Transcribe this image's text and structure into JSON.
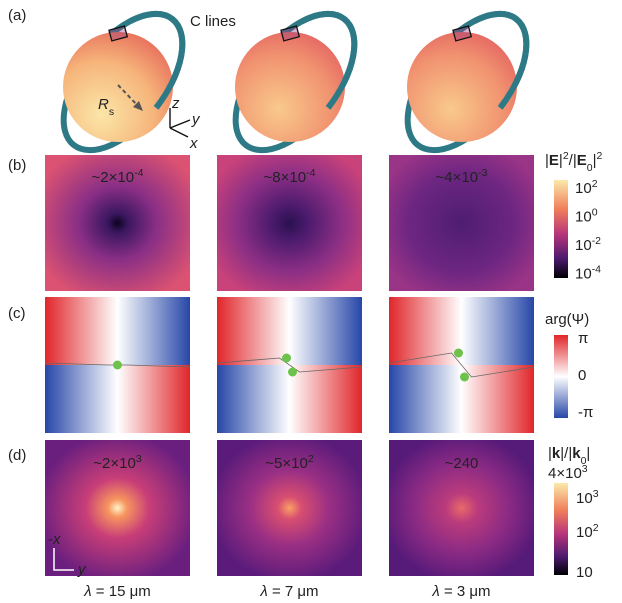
{
  "panel_labels": [
    "(a)",
    "(b)",
    "(c)",
    "(d)"
  ],
  "panel_a": {
    "c_lines": "C lines",
    "radius": {
      "sym": "R",
      "sub": "s"
    },
    "axes": {
      "z": "z",
      "y": "y",
      "x": "x"
    }
  },
  "row_b": {
    "annotations": [
      {
        "base": "~2×10",
        "exp": "-4"
      },
      {
        "base": "~8×10",
        "exp": "-4"
      },
      {
        "base": "~4×10",
        "exp": "-3"
      }
    ],
    "colorbar": {
      "title": [
        {
          "t": "|"
        },
        {
          "t": "E",
          "bold": true
        },
        {
          "t": "|"
        },
        {
          "t": "2",
          "sup": true
        },
        {
          "t": "/|"
        },
        {
          "t": "E",
          "bold": true
        },
        {
          "t": "0",
          "sub": true
        },
        {
          "t": "|"
        },
        {
          "t": "2",
          "sup": true
        }
      ],
      "ticks": [
        {
          "base": "10",
          "exp": "2"
        },
        {
          "base": "10",
          "exp": "0"
        },
        {
          "base": "10",
          "exp": "-2"
        },
        {
          "base": "10",
          "exp": "-4"
        }
      ]
    }
  },
  "row_c": {
    "colorbar": {
      "title": "arg(Ψ)",
      "ticks": [
        "π",
        "0",
        "-π"
      ]
    }
  },
  "row_d": {
    "annotations": [
      {
        "base": "~2×10",
        "exp": "3"
      },
      {
        "base": "~5×10",
        "exp": "2"
      },
      {
        "base": "~240"
      }
    ],
    "colorbar": {
      "title": [
        {
          "t": "|"
        },
        {
          "t": "k",
          "bold": true
        },
        {
          "t": "|/|"
        },
        {
          "t": "k",
          "bold": true
        },
        {
          "t": "0",
          "sub": true
        },
        {
          "t": "|"
        }
      ],
      "ticks": [
        {
          "base": "4×10",
          "exp": "3"
        },
        {
          "base": "10",
          "exp": "3"
        },
        {
          "base": "10",
          "exp": "2"
        },
        {
          "base": "10"
        }
      ]
    },
    "axes": {
      "v": "-x",
      "h": "y"
    }
  },
  "columns": [
    {
      "sym": "λ",
      "rest": " = 15 μm"
    },
    {
      "sym": "λ",
      "rest": " = 7 μm"
    },
    {
      "sym": "λ",
      "rest": " = 3 μm"
    }
  ]
}
